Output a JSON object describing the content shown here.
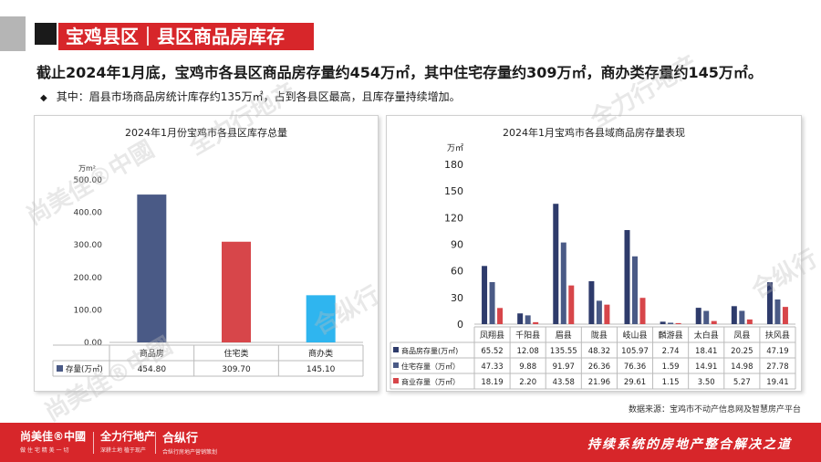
{
  "header": {
    "title": "宝鸡县区｜县区商品房库存"
  },
  "headline": "截止2024年1月底，宝鸡市各县区商品房存量约454万㎡，其中住宅存量约309万㎡，商办类存量约145万㎡。",
  "subline": {
    "bullet": "◆",
    "text": "其中：眉县市场商品房统计库存约135万㎡，占到各县区最高，且库存量持续增加。"
  },
  "chart_data": [
    {
      "type": "bar",
      "title": "2024年1月份宝鸡市各县区库存总量",
      "unit": "万m²",
      "categories": [
        "商品房",
        "住宅类",
        "商办类"
      ],
      "series": [
        {
          "name": "存量(万㎡)",
          "values": [
            454.8,
            309.7,
            145.1
          ],
          "value_labels": [
            "454.80",
            "309.70",
            "145.10"
          ]
        }
      ],
      "bar_colors": [
        "#4a5a86",
        "#d7464a",
        "#2fb5ef"
      ],
      "ylim": [
        0,
        500
      ],
      "yticks": [
        "0.00",
        "100.00",
        "200.00",
        "300.00",
        "400.00",
        "500.00"
      ],
      "legend": "data-table",
      "grid": false
    },
    {
      "type": "bar",
      "title": "2024年1月宝鸡市各县域商品房存量表现",
      "unit": "万㎡",
      "categories": [
        "凤翔县",
        "千阳县",
        "眉县",
        "陇县",
        "岐山县",
        "麟游县",
        "太白县",
        "凤县",
        "扶风县"
      ],
      "series": [
        {
          "name": "商品房存量(万㎡)",
          "color": "#2e3b6b",
          "values": [
            65.52,
            12.08,
            135.55,
            48.32,
            105.97,
            2.74,
            18.41,
            20.25,
            47.19
          ],
          "value_labels": [
            "65.52",
            "12.08",
            "135.55",
            "48.32",
            "105.97",
            "2.74",
            "18.41",
            "20.25",
            "47.19"
          ]
        },
        {
          "name": "住宅存量（万㎡）",
          "color": "#4a5a86",
          "values": [
            47.33,
            9.88,
            91.97,
            26.36,
            76.36,
            1.59,
            14.91,
            14.98,
            27.78
          ],
          "value_labels": [
            "47.33",
            "9.88",
            "91.97",
            "26.36",
            "76.36",
            "1.59",
            "14.91",
            "14.98",
            "27.78"
          ]
        },
        {
          "name": "商业存量（万㎡）",
          "color": "#d7464a",
          "values": [
            18.19,
            2.2,
            43.58,
            21.96,
            29.61,
            1.15,
            3.5,
            5.27,
            19.41
          ],
          "value_labels": [
            "18.19",
            "2.20",
            "43.58",
            "21.96",
            "29.61",
            "1.15",
            "3.50",
            "5.27",
            "19.41"
          ]
        }
      ],
      "ylim": [
        0,
        180
      ],
      "yticks": [
        "0",
        "30",
        "60",
        "90",
        "120",
        "150",
        "180"
      ],
      "legend": "data-table",
      "grid": false
    }
  ],
  "source": "数据来源：宝鸡市不动产信息网及智慧房产平台",
  "footer": {
    "brand1": "尚美佳®中國",
    "brand1_sub": "做 住 宅 精 美 一 切",
    "brand2": "全力行地产",
    "brand2_sub": "深耕土地 植于现产",
    "brand3": "合纵行",
    "brand3_sub": "合纵行房地产营销策划",
    "slogan": "持续系统的房地产整合解决之道"
  },
  "watermark": [
    "尚美佳®中國",
    "全力行地产",
    "合纵行"
  ]
}
